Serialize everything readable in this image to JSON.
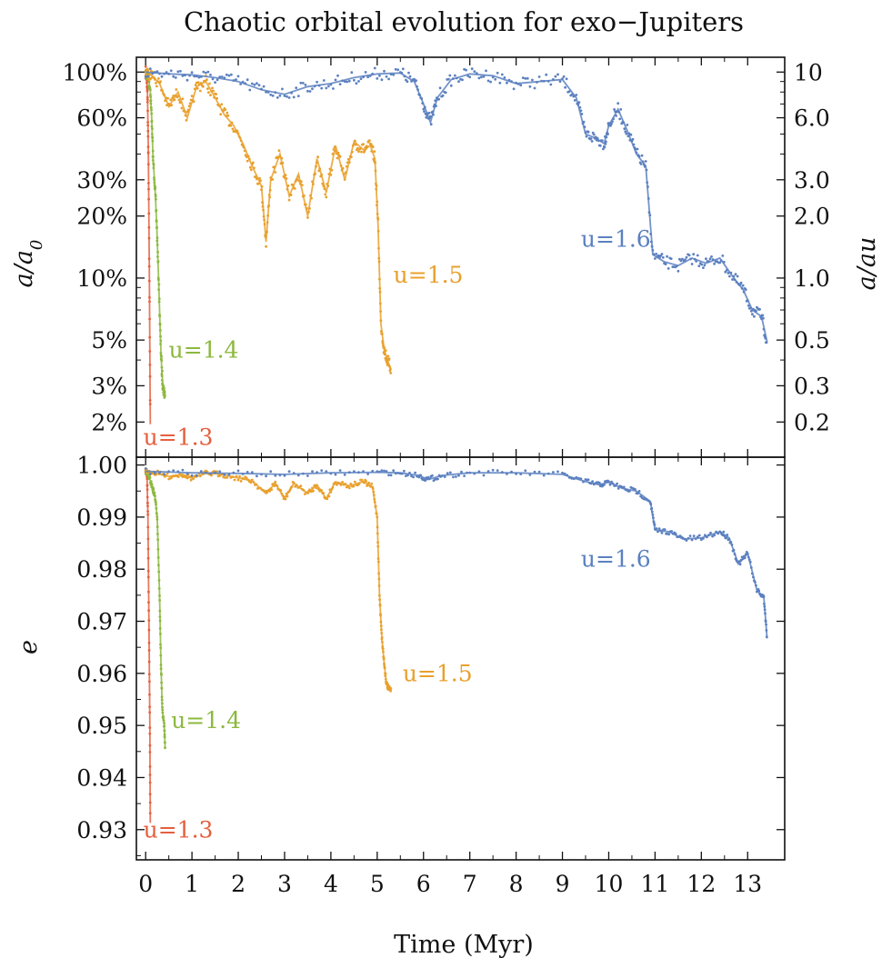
{
  "chart_data": [
    {
      "type": "scatter",
      "panel": "top",
      "title": "Chaotic orbital evolution for exo−Jupiters",
      "xlabel": "",
      "ylabel": "a/a0",
      "ylabel_right": "a/au",
      "yscale": "log",
      "xlim": [
        -0.2,
        13.8
      ],
      "ylim": [
        1.35,
        118
      ],
      "y_right_conversion": "a/au = 10 × (a/a0 in %) / 100",
      "yticks": [
        {
          "value": 100,
          "label": "100%"
        },
        {
          "value": 60,
          "label": "60%"
        },
        {
          "value": 30,
          "label": "30%"
        },
        {
          "value": 20,
          "label": "20%"
        },
        {
          "value": 10,
          "label": "10%"
        },
        {
          "value": 5,
          "label": "5%"
        },
        {
          "value": 3,
          "label": "3%"
        },
        {
          "value": 2,
          "label": "2%"
        }
      ],
      "yticks_right": [
        {
          "value": 100,
          "label": "10"
        },
        {
          "value": 60,
          "label": "6.0"
        },
        {
          "value": 30,
          "label": "3.0"
        },
        {
          "value": 20,
          "label": "2.0"
        },
        {
          "value": 10,
          "label": "1.0"
        },
        {
          "value": 5,
          "label": "0.5"
        },
        {
          "value": 3,
          "label": "0.3"
        },
        {
          "value": 2,
          "label": "0.2"
        }
      ],
      "series": [
        {
          "name": "u=1.3",
          "color": "#e5603f",
          "x": [
            0.0,
            0.02,
            0.04,
            0.06,
            0.08,
            0.1
          ],
          "y": [
            99,
            96,
            80,
            40,
            10,
            1.95
          ]
        },
        {
          "name": "u=1.4",
          "color": "#8cb83f",
          "x": [
            0.0,
            0.05,
            0.1,
            0.13,
            0.16,
            0.2,
            0.24,
            0.28,
            0.32,
            0.35,
            0.38,
            0.42
          ],
          "y": [
            99,
            97,
            82,
            60,
            38,
            28,
            18,
            10,
            5,
            3.5,
            2.9,
            2.7
          ]
        },
        {
          "name": "u=1.5",
          "color": "#e9a02d",
          "x": [
            0.0,
            0.1,
            0.3,
            0.5,
            0.7,
            0.9,
            1.1,
            1.3,
            1.5,
            1.7,
            1.9,
            2.1,
            2.3,
            2.5,
            2.6,
            2.7,
            2.9,
            3.1,
            3.3,
            3.5,
            3.7,
            3.9,
            4.1,
            4.3,
            4.5,
            4.7,
            4.85,
            4.95,
            5.02,
            5.08,
            5.15,
            5.22,
            5.3
          ],
          "y": [
            100,
            98,
            88,
            68,
            80,
            60,
            85,
            90,
            75,
            62,
            55,
            45,
            35,
            28,
            15,
            30,
            40,
            25,
            32,
            20,
            38,
            26,
            44,
            30,
            46,
            42,
            44,
            38,
            18,
            6,
            4.5,
            4.0,
            3.6
          ]
        },
        {
          "name": "u=1.6",
          "color": "#5b80c0",
          "x": [
            0.0,
            0.5,
            1.0,
            1.5,
            2.0,
            2.5,
            3.0,
            3.5,
            4.0,
            4.5,
            5.0,
            5.5,
            5.8,
            6.0,
            6.15,
            6.3,
            6.6,
            7.0,
            7.5,
            8.0,
            8.5,
            9.0,
            9.3,
            9.5,
            9.7,
            9.9,
            10.0,
            10.2,
            10.4,
            10.6,
            10.8,
            10.95,
            11.2,
            11.5,
            11.8,
            12.1,
            12.4,
            12.7,
            12.9,
            13.1,
            13.3,
            13.42
          ],
          "y": [
            100,
            98,
            97,
            94,
            90,
            82,
            78,
            85,
            88,
            94,
            98,
            99,
            90,
            70,
            57,
            75,
            92,
            98,
            96,
            88,
            90,
            92,
            75,
            50,
            48,
            45,
            55,
            66,
            52,
            40,
            35,
            13,
            12,
            11.5,
            12.5,
            11.8,
            12.5,
            10,
            8.8,
            7,
            6.5,
            4.9
          ]
        }
      ],
      "annotations": [
        {
          "text": "u=1.3",
          "color": "#e5603f",
          "x": -0.05,
          "y": 1.55
        },
        {
          "text": "u=1.4",
          "color": "#8cb83f",
          "x": 0.5,
          "y": 4.1
        },
        {
          "text": "u=1.5",
          "color": "#e9a02d",
          "x": 5.35,
          "y": 9.5
        },
        {
          "text": "u=1.6",
          "color": "#5b80c0",
          "x": 9.4,
          "y": 14.2
        }
      ]
    },
    {
      "type": "scatter",
      "panel": "bottom",
      "xlabel": "Time (Myr)",
      "ylabel": "e",
      "xlim": [
        -0.2,
        13.8
      ],
      "ylim": [
        0.9242,
        1.0015
      ],
      "xticks": [
        {
          "value": 0,
          "label": "0"
        },
        {
          "value": 1,
          "label": "1"
        },
        {
          "value": 2,
          "label": "2"
        },
        {
          "value": 3,
          "label": "3"
        },
        {
          "value": 4,
          "label": "4"
        },
        {
          "value": 5,
          "label": "5"
        },
        {
          "value": 6,
          "label": "6"
        },
        {
          "value": 7,
          "label": "7"
        },
        {
          "value": 8,
          "label": "8"
        },
        {
          "value": 9,
          "label": "9"
        },
        {
          "value": 10,
          "label": "10"
        },
        {
          "value": 11,
          "label": "11"
        },
        {
          "value": 12,
          "label": "12"
        },
        {
          "value": 13,
          "label": "13"
        }
      ],
      "yticks": [
        {
          "value": 1.0,
          "label": "1.00"
        },
        {
          "value": 0.99,
          "label": "0.99"
        },
        {
          "value": 0.98,
          "label": "0.98"
        },
        {
          "value": 0.97,
          "label": "0.97"
        },
        {
          "value": 0.96,
          "label": "0.96"
        },
        {
          "value": 0.95,
          "label": "0.95"
        },
        {
          "value": 0.94,
          "label": "0.94"
        },
        {
          "value": 0.93,
          "label": "0.93"
        }
      ],
      "series": [
        {
          "name": "u=1.3",
          "color": "#e5603f",
          "x": [
            0.0,
            0.03,
            0.05,
            0.07,
            0.09,
            0.1
          ],
          "y": [
            0.9988,
            0.998,
            0.99,
            0.97,
            0.95,
            0.9313
          ]
        },
        {
          "name": "u=1.4",
          "color": "#8cb83f",
          "x": [
            0.0,
            0.05,
            0.1,
            0.15,
            0.2,
            0.25,
            0.3,
            0.33,
            0.36,
            0.4,
            0.42
          ],
          "y": [
            0.9988,
            0.9982,
            0.997,
            0.9955,
            0.994,
            0.99,
            0.975,
            0.962,
            0.953,
            0.95,
            0.9458
          ]
        },
        {
          "name": "u=1.5",
          "color": "#e9a02d",
          "x": [
            0.0,
            0.2,
            0.5,
            0.8,
            1.0,
            1.3,
            1.6,
            2.0,
            2.3,
            2.6,
            2.8,
            3.0,
            3.2,
            3.5,
            3.7,
            3.9,
            4.1,
            4.4,
            4.7,
            4.9,
            5.0,
            5.05,
            5.1,
            5.15,
            5.2,
            5.25,
            5.3
          ],
          "y": [
            0.9988,
            0.9985,
            0.9978,
            0.9982,
            0.9975,
            0.9984,
            0.9983,
            0.9975,
            0.997,
            0.9945,
            0.9965,
            0.9935,
            0.9965,
            0.9945,
            0.9962,
            0.9935,
            0.9968,
            0.996,
            0.9968,
            0.9958,
            0.99,
            0.975,
            0.967,
            0.962,
            0.958,
            0.957,
            0.9568
          ]
        },
        {
          "name": "u=1.6",
          "color": "#5b80c0",
          "x": [
            0.0,
            1.0,
            2.0,
            3.0,
            4.0,
            5.0,
            5.5,
            5.9,
            6.1,
            6.4,
            7.0,
            8.0,
            9.0,
            9.5,
            9.8,
            10.0,
            10.3,
            10.6,
            10.9,
            11.0,
            11.3,
            11.6,
            12.0,
            12.4,
            12.6,
            12.8,
            13.0,
            13.2,
            13.35,
            13.42
          ],
          "y": [
            0.9988,
            0.9985,
            0.9984,
            0.9982,
            0.9985,
            0.9986,
            0.9985,
            0.998,
            0.9972,
            0.998,
            0.9985,
            0.9985,
            0.9982,
            0.9968,
            0.9962,
            0.9967,
            0.9955,
            0.995,
            0.993,
            0.9875,
            0.9872,
            0.9858,
            0.986,
            0.9872,
            0.986,
            0.981,
            0.983,
            0.976,
            0.9745,
            0.9667
          ]
        }
      ],
      "annotations": [
        {
          "text": "u=1.3",
          "color": "#e5603f",
          "x": -0.05,
          "y": 0.9285
        },
        {
          "text": "u=1.4",
          "color": "#8cb83f",
          "x": 0.55,
          "y": 0.9495
        },
        {
          "text": "u=1.5",
          "color": "#e9a02d",
          "x": 5.55,
          "y": 0.9585
        },
        {
          "text": "u=1.6",
          "color": "#5b80c0",
          "x": 9.4,
          "y": 0.9805
        }
      ]
    }
  ]
}
